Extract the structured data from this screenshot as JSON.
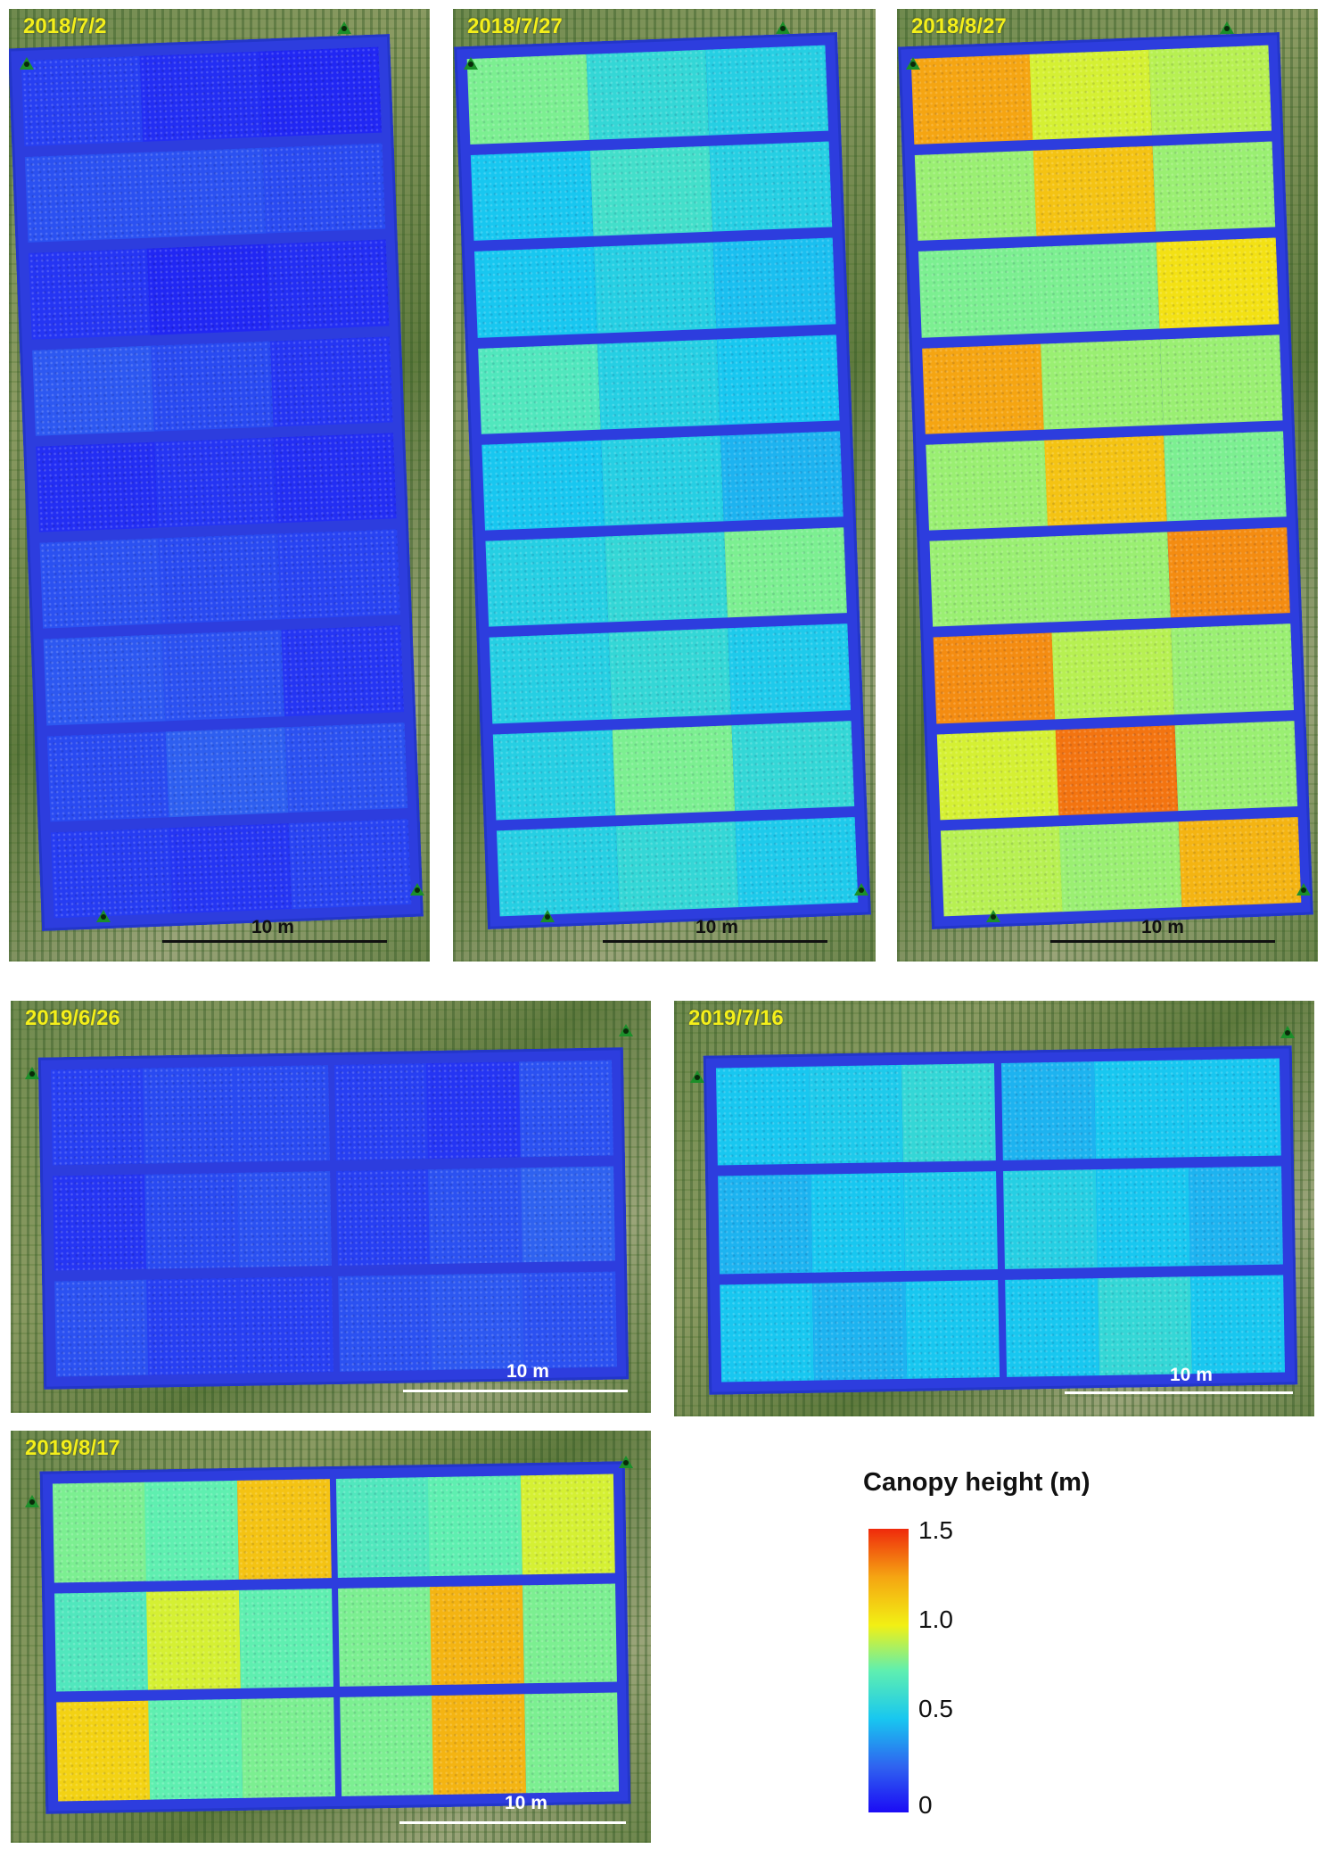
{
  "panels": [
    {
      "date": "2018/7/2",
      "scale": "10 m"
    },
    {
      "date": "2018/7/27",
      "scale": "10 m"
    },
    {
      "date": "2018/8/27",
      "scale": "10 m"
    },
    {
      "date": "2019/6/26",
      "scale": "10 m"
    },
    {
      "date": "2019/7/16",
      "scale": "10 m"
    },
    {
      "date": "2019/8/17",
      "scale": "10 m"
    }
  ],
  "legend": {
    "title": "Canopy height (m)",
    "ticks": [
      "1.5",
      "1.0",
      "0.5",
      "0"
    ],
    "colors": [
      "#1b0bf5",
      "#2f62f0",
      "#18c7f0",
      "#5fefb0",
      "#f2f014",
      "#f5a512",
      "#ef2a0c"
    ]
  },
  "plot_heights_m": {
    "2018/7/2": [
      [
        0.15,
        0.1,
        0.08
      ],
      [
        0.2,
        0.2,
        0.18
      ],
      [
        0.12,
        0.08,
        0.1
      ],
      [
        0.22,
        0.18,
        0.12
      ],
      [
        0.1,
        0.12,
        0.1
      ],
      [
        0.2,
        0.18,
        0.16
      ],
      [
        0.22,
        0.2,
        0.12
      ],
      [
        0.18,
        0.24,
        0.2
      ],
      [
        0.14,
        0.12,
        0.16
      ]
    ],
    "2018/7/27": [
      [
        0.8,
        0.6,
        0.55
      ],
      [
        0.5,
        0.65,
        0.55
      ],
      [
        0.5,
        0.55,
        0.48
      ],
      [
        0.7,
        0.55,
        0.5
      ],
      [
        0.5,
        0.55,
        0.45
      ],
      [
        0.55,
        0.6,
        0.8
      ],
      [
        0.55,
        0.6,
        0.52
      ],
      [
        0.55,
        0.8,
        0.6
      ],
      [
        0.55,
        0.6,
        0.52
      ]
    ],
    "2018/8/27": [
      [
        1.25,
        0.95,
        0.9
      ],
      [
        0.85,
        1.15,
        0.85
      ],
      [
        0.8,
        0.8,
        1.05
      ],
      [
        1.25,
        0.85,
        0.85
      ],
      [
        0.85,
        1.15,
        0.8
      ],
      [
        0.85,
        0.85,
        1.3
      ],
      [
        1.3,
        0.9,
        0.85
      ],
      [
        0.95,
        1.35,
        0.85
      ],
      [
        0.9,
        0.85,
        1.2
      ]
    ],
    "2019/6/26": [
      [
        0.15,
        0.18,
        0.18,
        0.15,
        0.12,
        0.2
      ],
      [
        0.12,
        0.18,
        0.2,
        0.15,
        0.2,
        0.25
      ],
      [
        0.2,
        0.15,
        0.15,
        0.2,
        0.22,
        0.2
      ]
    ],
    "2019/7/16": [
      [
        0.5,
        0.52,
        0.6,
        0.45,
        0.5,
        0.5
      ],
      [
        0.45,
        0.5,
        0.52,
        0.55,
        0.5,
        0.45
      ],
      [
        0.5,
        0.45,
        0.5,
        0.5,
        0.6,
        0.5
      ]
    ],
    "2019/8/17": [
      [
        0.8,
        0.75,
        1.15,
        0.7,
        0.75,
        0.95
      ],
      [
        0.7,
        0.95,
        0.75,
        0.8,
        1.2,
        0.8
      ],
      [
        1.1,
        0.75,
        0.8,
        0.8,
        1.2,
        0.8
      ]
    ]
  }
}
